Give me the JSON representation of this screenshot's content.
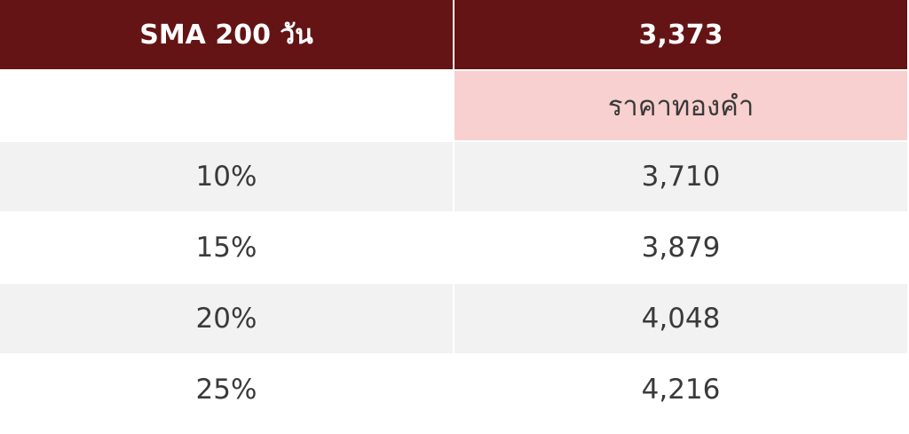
{
  "header": {
    "label": "SMA 200 วัน",
    "value": "3,373"
  },
  "subheader": "ราคาทองคำ",
  "table": {
    "rows": [
      [
        "10%",
        "3,710"
      ],
      [
        "15%",
        "3,879"
      ],
      [
        "20%",
        "4,048"
      ],
      [
        "25%",
        "4,216"
      ]
    ]
  }
}
